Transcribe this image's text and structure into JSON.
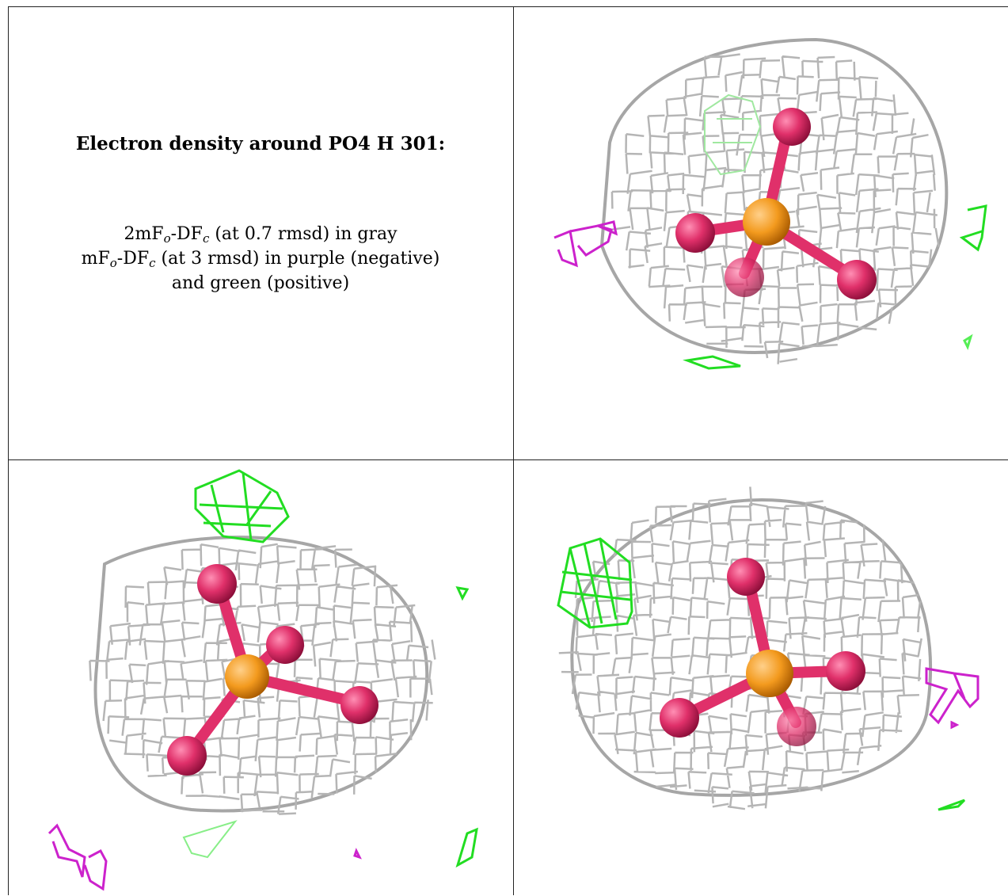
{
  "caption": {
    "title": "Electron density around PO4 H 301:",
    "line1": {
      "prefix": "2mF",
      "sub1": "o",
      "mid": "-DF",
      "sub2": "c",
      "suffix": " (at 0.7 rmsd) in gray"
    },
    "line2": {
      "prefix": "mF",
      "sub1": "o",
      "mid": "-DF",
      "sub2": "c",
      "suffix": " (at 3 rmsd) in purple (negative)"
    },
    "line3": "and green (positive)"
  },
  "colors": {
    "mesh_gray": "#9a9a9a",
    "mesh_light": "#c8c8c8",
    "positive_green": "#22dd22",
    "negative_purple": "#cc22cc",
    "phosphorus_orange": "#f39a1e",
    "oxygen_pink": "#e0306a"
  },
  "panels": [
    {
      "name": "view-top-right"
    },
    {
      "name": "view-bottom-left"
    },
    {
      "name": "view-bottom-right"
    }
  ]
}
